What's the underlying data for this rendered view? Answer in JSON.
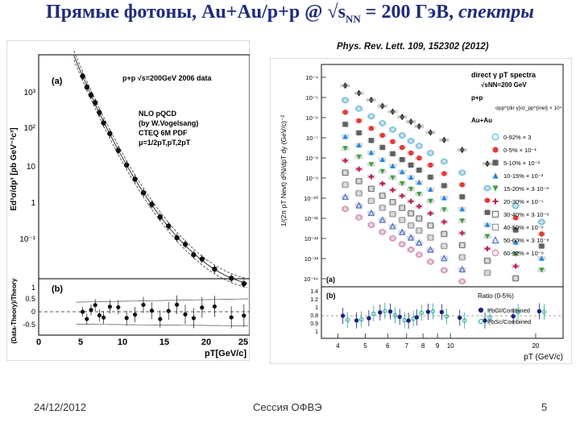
{
  "slide": {
    "title_main": "Прямые фотоны, Au+Au/p+p @ √s",
    "title_sub": "NN",
    "title_eq": " = 200 ГэВ, ",
    "title_em": "спектры",
    "reference": "Phys. Rev. Lett. 109, 152302 (2012)",
    "footer_date": "24/12/2012",
    "footer_center": "Сессия ОФВЭ",
    "footer_page": "5"
  },
  "left_figure": {
    "panel_a_label": "(a)",
    "panel_b_label": "(b)",
    "legend_data": "p+p  √s=200GeV 2006 data",
    "model_lines": [
      "NLO pQCD",
      "(by W.Vogelsang)",
      "CTEQ 6M PDF",
      "μ=1/2pT,pT,2pT"
    ],
    "ylabel_top": "Ed³σ/dp³ [pb GeV⁻²c³]",
    "ylabel_bottom": "(Data-Theory)/Theory",
    "xlabel": "pT[GeV/c]",
    "y_ticks_top": [
      "10³",
      "10²",
      "10",
      "1",
      "10⁻¹"
    ],
    "y_ticks_bottom": [
      "1",
      "0.5",
      "0",
      "-0.5"
    ],
    "x_ticks": [
      "0",
      "5",
      "10",
      "15",
      "20",
      "25"
    ]
  },
  "right_figure": {
    "header": "direct γ pT spectra",
    "sqrt_label": "√sNN=200 GeV",
    "pp_label": "p+p",
    "pp_scale": "σpp^{dir γ}/σ_pp^{inel} × 10⁴",
    "auau_label": "Au+Au",
    "ylabel": "1/(2π pT Nevt) d²N/dpT dy (GeV/c)⁻²",
    "xlabel": "pT (GeV/c)",
    "panel_a_label": "(a)",
    "panel_b_label": "(b)",
    "y_ticks": [
      "10⁻⁴",
      "10⁻⁵",
      "10⁻⁶",
      "10⁻⁷",
      "10⁻⁸",
      "10⁻⁹",
      "10⁻¹⁰",
      "10⁻¹¹",
      "10⁻¹²",
      "10⁻¹³",
      "10⁻¹⁴"
    ],
    "ratio_ticks": [
      "1.4",
      "1.2",
      "1",
      "0.8",
      "0.9",
      "1"
    ],
    "x_ticks": [
      "4",
      "5",
      "6",
      "7",
      "8",
      "9",
      "10",
      "20"
    ],
    "centralities": [
      {
        "label": "0-92% × 3",
        "color": "#4fc3e8",
        "marker": "circle-open"
      },
      {
        "label": "0-5% × 10⁻¹",
        "color": "#e53935",
        "marker": "circle"
      },
      {
        "label": "5-10% × 10⁻²",
        "color": "#606060",
        "marker": "square"
      },
      {
        "label": "10-15% × 10⁻³",
        "color": "#1e88e5",
        "marker": "triangle"
      },
      {
        "label": "15-20% × 3·10⁻³",
        "color": "#43a047",
        "marker": "triangle-down"
      },
      {
        "label": "20-30% × 10⁻⁵",
        "color": "#c2185b",
        "marker": "cross"
      },
      {
        "label": "30-40% × 3·10⁻⁶",
        "color": "#777777",
        "marker": "square-open"
      },
      {
        "label": "40-50% × 10⁻⁶",
        "color": "#999999",
        "marker": "square-open"
      },
      {
        "label": "50-60% × 3·10⁻⁸",
        "color": "#4a6fd1",
        "marker": "triangle-open"
      },
      {
        "label": "60-92% × 10⁻⁸",
        "color": "#e17fb4",
        "marker": "circle-open"
      }
    ],
    "ratio_title": "Ratio (0-5%)",
    "ratio_legend": [
      {
        "label": "PbGl/Combined",
        "color": "#1a237e"
      },
      {
        "label": "PbSc/Combined",
        "color": "#26a69a"
      }
    ]
  }
}
